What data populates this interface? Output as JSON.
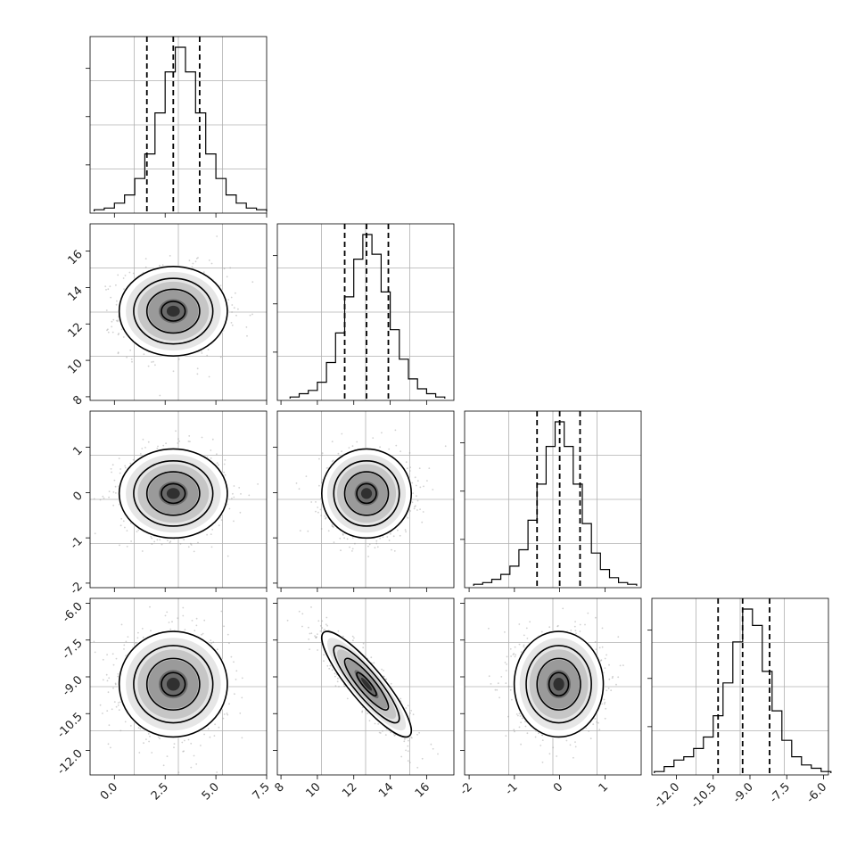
{
  "chart_data": {
    "type": "corner",
    "parameters": [
      {
        "range": [
          -1.2,
          7.5
        ],
        "ticks": [
          "0.0",
          "2.5",
          "5.0",
          "7.5"
        ],
        "tick_values": [
          0,
          2.5,
          5,
          7.5
        ],
        "quantiles": [
          1.6,
          2.9,
          4.2
        ],
        "mean": 2.9,
        "sd": 1.3
      },
      {
        "range": [
          7.8,
          17.5
        ],
        "ticks": [
          "8",
          "10",
          "12",
          "14",
          "16"
        ],
        "tick_values": [
          8,
          10,
          12,
          14,
          16
        ],
        "quantiles": [
          11.5,
          12.7,
          13.9
        ],
        "mean": 12.7,
        "sd": 1.2
      },
      {
        "range": [
          -2.1,
          1.8
        ],
        "ticks": [
          "-2",
          "-1",
          "0",
          "1"
        ],
        "tick_values": [
          -2,
          -1,
          0,
          1
        ],
        "quantiles": [
          -0.5,
          0.0,
          0.45
        ],
        "mean": -0.02,
        "sd": 0.48
      },
      {
        "range": [
          -13.0,
          -5.8
        ],
        "ticks": [
          "-12.0",
          "-10.5",
          "-9.0",
          "-7.5",
          "-6.0"
        ],
        "tick_values": [
          -12,
          -10.5,
          -9,
          -7.5,
          -6
        ],
        "quantiles": [
          -10.3,
          -9.3,
          -8.2
        ],
        "mean": -9.3,
        "sd": 1.05
      }
    ],
    "histograms": [
      {
        "bins": [
          -1.0,
          -0.5,
          0.0,
          0.5,
          1.0,
          1.5,
          2.0,
          2.5,
          3.0,
          3.5,
          4.0,
          4.5,
          5.0,
          5.5,
          6.0,
          6.5,
          7.0
        ],
        "counts": [
          1,
          2,
          5,
          10,
          20,
          35,
          60,
          85,
          100,
          85,
          60,
          35,
          20,
          10,
          5,
          2,
          1
        ]
      },
      {
        "bins": [
          8.5,
          9.0,
          9.5,
          10.0,
          10.5,
          11.0,
          11.5,
          12.0,
          12.5,
          13.0,
          13.5,
          14.0,
          14.5,
          15.0,
          15.5,
          16.0,
          16.5
        ],
        "counts": [
          1,
          3,
          5,
          10,
          22,
          40,
          62,
          85,
          100,
          88,
          65,
          42,
          24,
          12,
          6,
          3,
          1
        ]
      },
      {
        "bins": [
          -1.9,
          -1.7,
          -1.5,
          -1.3,
          -1.1,
          -0.9,
          -0.7,
          -0.5,
          -0.3,
          -0.1,
          0.1,
          0.3,
          0.5,
          0.7,
          0.9,
          1.1,
          1.3,
          1.5
        ],
        "counts": [
          1,
          2,
          4,
          7,
          12,
          22,
          40,
          62,
          85,
          100,
          85,
          62,
          38,
          20,
          10,
          5,
          2,
          1
        ]
      },
      {
        "bins": [
          -12.9,
          -12.5,
          -12.1,
          -11.7,
          -11.3,
          -10.9,
          -10.5,
          -10.1,
          -9.7,
          -9.3,
          -8.9,
          -8.5,
          -8.1,
          -7.7,
          -7.3,
          -6.9,
          -6.5,
          -6.1
        ],
        "counts": [
          1,
          4,
          8,
          10,
          15,
          22,
          35,
          55,
          80,
          100,
          90,
          62,
          38,
          20,
          10,
          5,
          3,
          1
        ]
      }
    ],
    "pairs": [
      {
        "row": 1,
        "col": 0,
        "rho": 0.0
      },
      {
        "row": 2,
        "col": 0,
        "rho": 0.0
      },
      {
        "row": 2,
        "col": 1,
        "rho": 0.0
      },
      {
        "row": 3,
        "col": 0,
        "rho": 0.0
      },
      {
        "row": 3,
        "col": 1,
        "rho": -0.88
      },
      {
        "row": 3,
        "col": 2,
        "rho": 0.0
      }
    ],
    "contour_levels_sigma": [
      0.5,
      1.0,
      1.5,
      2.0
    ],
    "grid": true
  }
}
